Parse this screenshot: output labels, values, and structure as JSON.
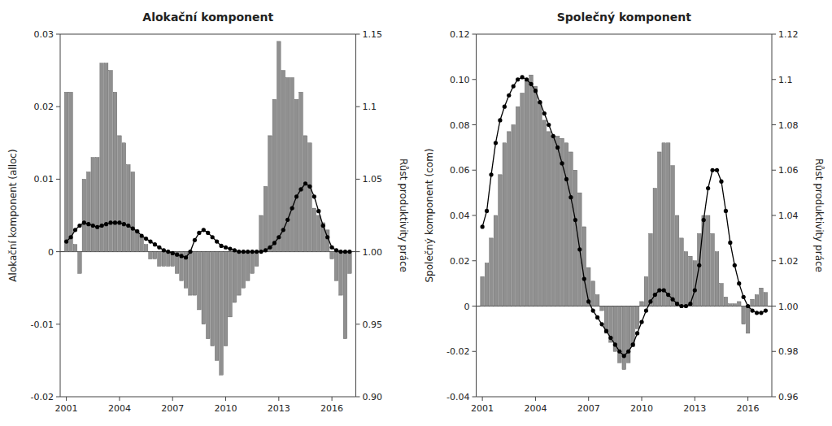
{
  "chart_data": [
    {
      "type": "bar",
      "title": "Alokační komponent",
      "ylabel": "Alokační komponent (alloc)",
      "y2label": "Růst produktivity práce",
      "x": [
        2001,
        2001.25,
        2001.5,
        2001.75,
        2002,
        2002.25,
        2002.5,
        2002.75,
        2003,
        2003.25,
        2003.5,
        2003.75,
        2004,
        2004.25,
        2004.5,
        2004.75,
        2005,
        2005.25,
        2005.5,
        2005.75,
        2006,
        2006.25,
        2006.5,
        2006.75,
        2007,
        2007.25,
        2007.5,
        2007.75,
        2008,
        2008.25,
        2008.5,
        2008.75,
        2009,
        2009.25,
        2009.5,
        2009.75,
        2010,
        2010.25,
        2010.5,
        2010.75,
        2011,
        2011.25,
        2011.5,
        2011.75,
        2012,
        2012.25,
        2012.5,
        2012.75,
        2013,
        2013.25,
        2013.5,
        2013.75,
        2014,
        2014.25,
        2014.5,
        2014.75,
        2015,
        2015.25,
        2015.5,
        2015.75,
        2016,
        2016.25,
        2016.5,
        2016.75,
        2017
      ],
      "xlim": [
        2000.65,
        2017.35
      ],
      "xticks": [
        2001,
        2004,
        2007,
        2010,
        2013,
        2016
      ],
      "ylim": [
        -0.02,
        0.03
      ],
      "yticks": [
        -0.02,
        -0.01,
        0,
        0.01,
        0.02,
        0.03
      ],
      "y2lim": [
        0.9,
        1.15
      ],
      "y2ticks": [
        {
          "value": 0.9,
          "label": "0.90"
        },
        0.95,
        {
          "value": 1.0,
          "label": "1.00"
        },
        1.05,
        1.1,
        1.15
      ],
      "grid": false,
      "series": [
        {
          "type": "bar",
          "color": "#909090",
          "values": [
            0.022,
            0.022,
            0.001,
            -0.003,
            0.01,
            0.011,
            0.013,
            0.013,
            0.026,
            0.026,
            0.025,
            0.022,
            0.016,
            0.015,
            0.012,
            0.011,
            0.003,
            0.002,
            0.001,
            -0.001,
            -0.001,
            -0.002,
            -0.002,
            -0.002,
            -0.002,
            -0.003,
            -0.004,
            -0.005,
            -0.006,
            -0.006,
            -0.008,
            -0.01,
            -0.012,
            -0.013,
            -0.015,
            -0.017,
            -0.013,
            -0.009,
            -0.007,
            -0.006,
            -0.005,
            -0.004,
            -0.003,
            -0.002,
            0.005,
            0.009,
            0.016,
            0.021,
            0.029,
            0.025,
            0.024,
            0.024,
            0.021,
            0.022,
            0.016,
            0.015,
            0.006,
            0.005,
            0.004,
            0.003,
            -0.001,
            -0.004,
            -0.006,
            -0.012,
            -0.003
          ]
        },
        {
          "type": "line",
          "axis": "y2",
          "color": "#000000",
          "marker": "circle",
          "values": [
            1.007,
            1.01,
            1.015,
            1.018,
            1.02,
            1.019,
            1.018,
            1.017,
            1.018,
            1.019,
            1.02,
            1.02,
            1.02,
            1.019,
            1.018,
            1.016,
            1.014,
            1.011,
            1.009,
            1.007,
            1.005,
            1.003,
            1.001,
            1.0,
            0.999,
            0.998,
            0.997,
            0.996,
            1.0,
            1.008,
            1.013,
            1.015,
            1.013,
            1.01,
            1.007,
            1.004,
            1.003,
            1.002,
            1.001,
            1.0,
            1.0,
            1.0,
            1.0,
            1.0,
            1.0,
            1.001,
            1.003,
            1.006,
            1.01,
            1.015,
            1.022,
            1.03,
            1.038,
            1.043,
            1.047,
            1.045,
            1.038,
            1.028,
            1.018,
            1.01,
            1.003,
            1.001,
            1.0,
            1.0,
            1.0
          ]
        }
      ]
    },
    {
      "type": "bar",
      "title": "Společný komponent",
      "ylabel": "Společný komponent (com)",
      "y2label": "Růst produktivity práce",
      "x": [
        2001,
        2001.25,
        2001.5,
        2001.75,
        2002,
        2002.25,
        2002.5,
        2002.75,
        2003,
        2003.25,
        2003.5,
        2003.75,
        2004,
        2004.25,
        2004.5,
        2004.75,
        2005,
        2005.25,
        2005.5,
        2005.75,
        2006,
        2006.25,
        2006.5,
        2006.75,
        2007,
        2007.25,
        2007.5,
        2007.75,
        2008,
        2008.25,
        2008.5,
        2008.75,
        2009,
        2009.25,
        2009.5,
        2009.75,
        2010,
        2010.25,
        2010.5,
        2010.75,
        2011,
        2011.25,
        2011.5,
        2011.75,
        2012,
        2012.25,
        2012.5,
        2012.75,
        2013,
        2013.25,
        2013.5,
        2013.75,
        2014,
        2014.25,
        2014.5,
        2014.75,
        2015,
        2015.25,
        2015.5,
        2015.75,
        2016,
        2016.25,
        2016.5,
        2016.75,
        2017
      ],
      "xlim": [
        2000.65,
        2017.35
      ],
      "xticks": [
        2001,
        2004,
        2007,
        2010,
        2013,
        2016
      ],
      "ylim": [
        -0.04,
        0.12
      ],
      "yticks": [
        -0.04,
        -0.02,
        0,
        0.02,
        0.04,
        0.06,
        0.08,
        {
          "value": 0.1,
          "label": "0.10"
        },
        0.12
      ],
      "y2lim": [
        0.96,
        1.12
      ],
      "y2ticks": [
        0.96,
        0.98,
        {
          "value": 1.0,
          "label": "1.00"
        },
        1.02,
        1.04,
        1.06,
        1.08,
        1.1,
        1.12
      ],
      "grid": false,
      "series": [
        {
          "type": "bar",
          "color": "#909090",
          "values": [
            0.013,
            0.019,
            0.03,
            0.04,
            0.058,
            0.072,
            0.077,
            0.08,
            0.088,
            0.094,
            0.1,
            0.102,
            0.097,
            0.09,
            0.082,
            0.077,
            0.075,
            0.075,
            0.074,
            0.072,
            0.068,
            0.06,
            0.05,
            0.035,
            0.017,
            0.011,
            0.005,
            -0.002,
            -0.012,
            -0.016,
            -0.02,
            -0.025,
            -0.028,
            -0.025,
            -0.018,
            -0.01,
            0.002,
            0.013,
            0.032,
            0.052,
            0.068,
            0.072,
            0.072,
            0.062,
            0.04,
            0.03,
            0.024,
            0.022,
            0.02,
            0.032,
            0.04,
            0.04,
            0.032,
            0.024,
            0.01,
            0.004,
            0.001,
            0.001,
            0.002,
            -0.008,
            -0.012,
            0.003,
            0.005,
            0.008,
            0.006
          ]
        },
        {
          "type": "line",
          "axis": "y2",
          "color": "#000000",
          "marker": "circle",
          "values": [
            1.035,
            1.042,
            1.058,
            1.072,
            1.082,
            1.088,
            1.093,
            1.097,
            1.1,
            1.101,
            1.1,
            1.098,
            1.095,
            1.09,
            1.085,
            1.08,
            1.075,
            1.07,
            1.063,
            1.056,
            1.048,
            1.038,
            1.025,
            1.012,
            1.002,
            0.998,
            0.995,
            0.992,
            0.989,
            0.986,
            0.983,
            0.98,
            0.978,
            0.98,
            0.983,
            0.988,
            0.993,
            0.998,
            1.002,
            1.005,
            1.007,
            1.007,
            1.005,
            1.003,
            1.001,
            1.0,
            1.0,
            1.001,
            1.007,
            1.018,
            1.038,
            1.052,
            1.06,
            1.06,
            1.055,
            1.042,
            1.028,
            1.018,
            1.01,
            1.004,
            1.0,
            0.998,
            0.997,
            0.997,
            0.998
          ]
        }
      ]
    }
  ]
}
